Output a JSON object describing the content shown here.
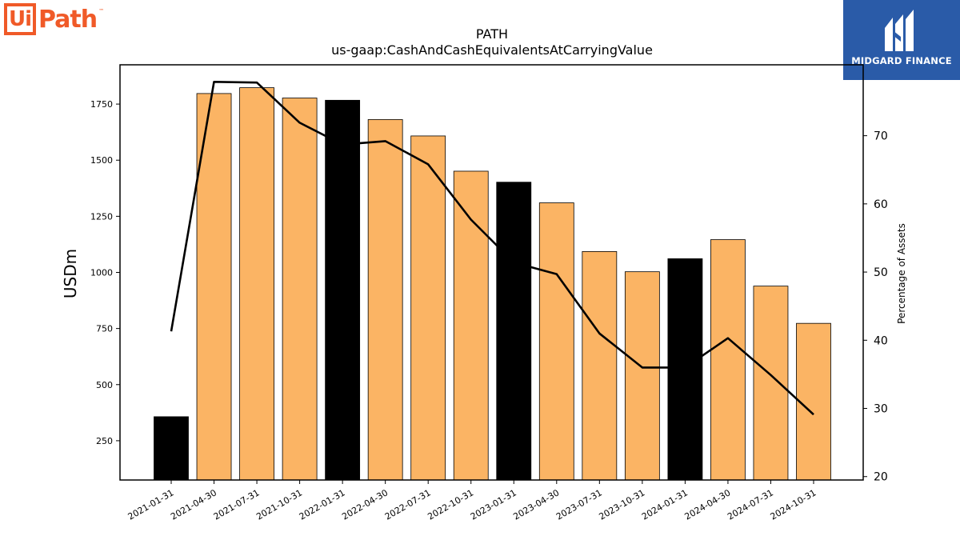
{
  "logos": {
    "left": {
      "ui": "Ui",
      "path": "Path",
      "tm": "™"
    },
    "right": {
      "text": "MIDGARD FINANCE"
    }
  },
  "chart_data": {
    "type": "bar",
    "title": "PATH",
    "subtitle": "us-gaap:CashAndCashEquivalentsAtCarryingValue",
    "ylabel": "USDm",
    "y2label": "Percentage of Assets",
    "categories": [
      "2021-01-31",
      "2021-04-30",
      "2021-07-31",
      "2021-10-31",
      "2022-01-31",
      "2022-04-30",
      "2022-07-31",
      "2022-10-31",
      "2023-01-31",
      "2023-04-30",
      "2023-07-31",
      "2023-10-31",
      "2024-01-31",
      "2024-04-30",
      "2024-07-31",
      "2024-10-31"
    ],
    "series": [
      {
        "type": "bar",
        "values": [
          357,
          1797,
          1823,
          1777,
          1767,
          1681,
          1608,
          1451,
          1402,
          1310,
          1093,
          1003,
          1061,
          1146,
          939,
          773
        ]
      },
      {
        "type": "line",
        "axis": "right",
        "values": [
          41.3,
          77.9,
          77.8,
          71.9,
          68.7,
          69.2,
          65.8,
          57.7,
          51.4,
          49.7,
          41.0,
          36.0,
          36.0,
          40.3,
          34.9,
          29.1
        ]
      }
    ],
    "bar_colors": {
      "default": "#fbb464",
      "fiscal_year_end": "#000000"
    },
    "highlight_categories": [
      "2021-01-31",
      "2022-01-31",
      "2023-01-31",
      "2024-01-31"
    ],
    "line_color": "#000000",
    "yticks": [
      250,
      500,
      750,
      1000,
      1250,
      1500,
      1750
    ],
    "y2ticks": [
      20,
      30,
      40,
      50,
      60,
      70
    ],
    "ylim": [
      75,
      1925
    ],
    "y2lim": [
      19.5,
      80.4
    ]
  }
}
